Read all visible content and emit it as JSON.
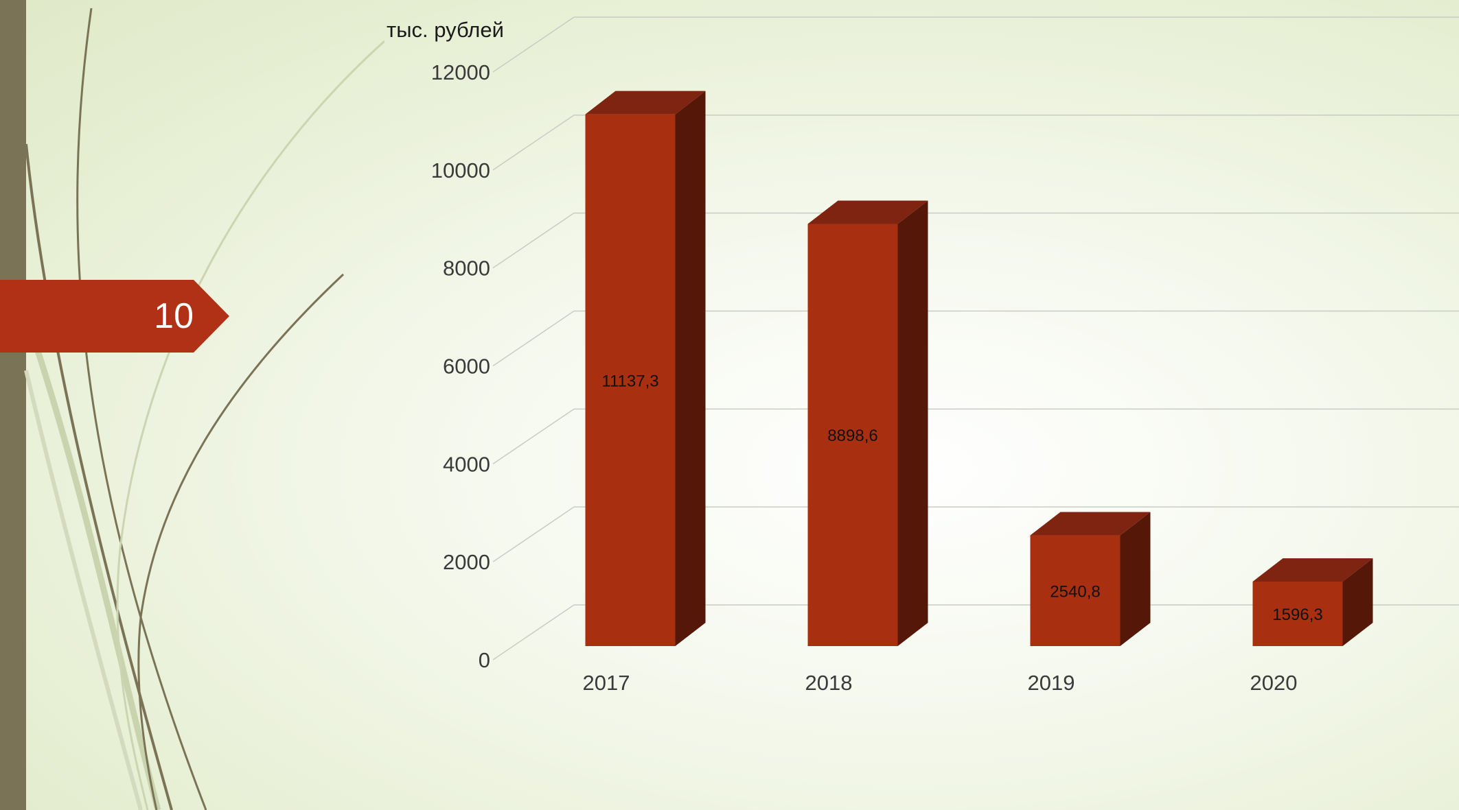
{
  "slide": {
    "number": "10"
  },
  "colors": {
    "bar_front": "#a83010",
    "bar_top": "#7e2410",
    "bar_side": "#551707",
    "sidebar": "#7a7356",
    "tag": "#b03115",
    "grid": "#c9ccc2"
  },
  "chart_data": {
    "type": "bar",
    "style": "3d-column",
    "unit_label": "тыс. рублей",
    "categories": [
      "2017",
      "2018",
      "2019",
      "2020"
    ],
    "series": [
      {
        "values": [
          11137.3,
          8898.6,
          2540.8,
          1596.3
        ],
        "labels": [
          "11137,3",
          "8898,6",
          "2540,8",
          "1596,3"
        ]
      }
    ],
    "y_ticks": [
      "0",
      "2000",
      "4000",
      "6000",
      "8000",
      "10000",
      "12000"
    ],
    "ylim": [
      0,
      12000
    ],
    "grid": true,
    "legend": "none"
  }
}
